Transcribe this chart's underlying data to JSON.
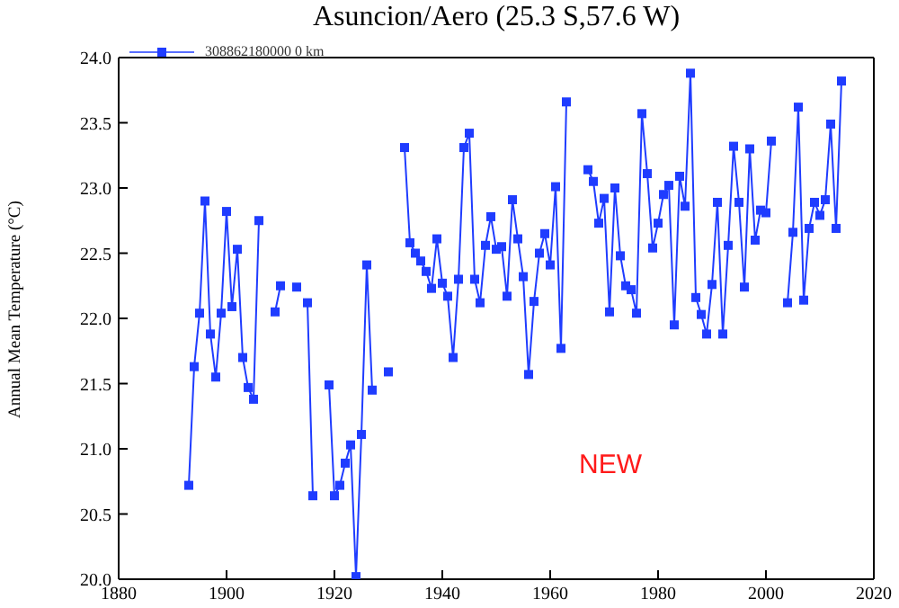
{
  "chart_data": {
    "type": "line",
    "title": "Asuncion/Aero (25.3 S,57.6 W)",
    "ylabel": "Annual Mean Temperature (°C)",
    "annotations": [
      "NEW"
    ],
    "x": [
      1893,
      1894,
      1895,
      1896,
      1897,
      1898,
      1899,
      1900,
      1901,
      1902,
      1903,
      1904,
      1905,
      1906,
      1907,
      1908,
      1909,
      1910,
      1911,
      1912,
      1913,
      1914,
      1915,
      1916,
      1917,
      1918,
      1919,
      1920,
      1921,
      1922,
      1923,
      1924,
      1925,
      1926,
      1927,
      1928,
      1929,
      1930,
      1931,
      1932,
      1933,
      1934,
      1935,
      1936,
      1937,
      1938,
      1939,
      1940,
      1941,
      1942,
      1943,
      1944,
      1945,
      1946,
      1947,
      1948,
      1949,
      1950,
      1951,
      1952,
      1953,
      1954,
      1955,
      1956,
      1957,
      1958,
      1959,
      1960,
      1961,
      1962,
      1963,
      1964,
      1965,
      1966,
      1967,
      1968,
      1969,
      1970,
      1971,
      1972,
      1973,
      1974,
      1975,
      1976,
      1977,
      1978,
      1979,
      1980,
      1981,
      1982,
      1983,
      1984,
      1985,
      1986,
      1987,
      1988,
      1989,
      1990,
      1991,
      1992,
      1993,
      1994,
      1995,
      1996,
      1997,
      1998,
      1999,
      2000,
      2001,
      2002,
      2003,
      2004,
      2005,
      2006,
      2007,
      2008,
      2009,
      2010,
      2011,
      2012,
      2013,
      2014
    ],
    "series": [
      {
        "name": "308862180000 0 km",
        "color": "#1f3cff",
        "values": [
          20.72,
          21.63,
          22.04,
          22.9,
          21.88,
          21.55,
          22.04,
          22.82,
          22.09,
          22.53,
          21.7,
          21.47,
          21.38,
          22.75,
          null,
          null,
          22.05,
          22.25,
          null,
          null,
          22.24,
          null,
          22.12,
          20.64,
          null,
          null,
          21.49,
          20.64,
          20.72,
          20.89,
          21.03,
          20.02,
          21.11,
          22.41,
          21.45,
          null,
          null,
          21.59,
          null,
          null,
          23.31,
          22.58,
          22.5,
          22.44,
          22.36,
          22.23,
          22.61,
          22.27,
          22.17,
          21.7,
          22.3,
          23.31,
          23.42,
          22.3,
          22.12,
          22.56,
          22.78,
          22.53,
          22.55,
          22.17,
          22.91,
          22.61,
          22.32,
          21.57,
          22.13,
          22.5,
          22.65,
          22.41,
          23.01,
          21.77,
          23.66,
          null,
          null,
          null,
          23.14,
          23.05,
          22.73,
          22.92,
          22.05,
          23.0,
          22.48,
          22.25,
          22.22,
          22.04,
          23.57,
          23.11,
          22.54,
          22.73,
          22.95,
          23.02,
          21.95,
          23.09,
          22.86,
          23.88,
          22.16,
          22.03,
          21.88,
          22.26,
          22.89,
          21.88,
          22.56,
          23.32,
          22.89,
          22.24,
          23.3,
          22.6,
          22.83,
          22.81,
          23.36,
          null,
          null,
          22.12,
          22.66,
          23.62,
          22.14,
          22.69,
          22.89,
          22.79,
          22.91,
          23.49,
          22.69,
          23.82
        ]
      }
    ],
    "xlim": [
      1880,
      2020
    ],
    "xticks": [
      1880,
      1900,
      1920,
      1940,
      1960,
      1980,
      2000,
      2020
    ],
    "ylim": [
      20,
      24
    ],
    "yticks": [
      {
        "value": 20,
        "label": "20.0"
      },
      {
        "value": 20.5,
        "label": "20.5"
      },
      {
        "value": 21,
        "label": "21.0"
      },
      {
        "value": 21.5,
        "label": "21.5"
      },
      {
        "value": 22,
        "label": "22.0"
      },
      {
        "value": 22.5,
        "label": "22.5"
      },
      {
        "value": 23,
        "label": "23.0"
      },
      {
        "value": 23.5,
        "label": "23.5"
      },
      {
        "value": 24,
        "label": "24.0"
      }
    ],
    "legend": "top left",
    "marker": "square",
    "line_style": "solid",
    "grid": false
  }
}
